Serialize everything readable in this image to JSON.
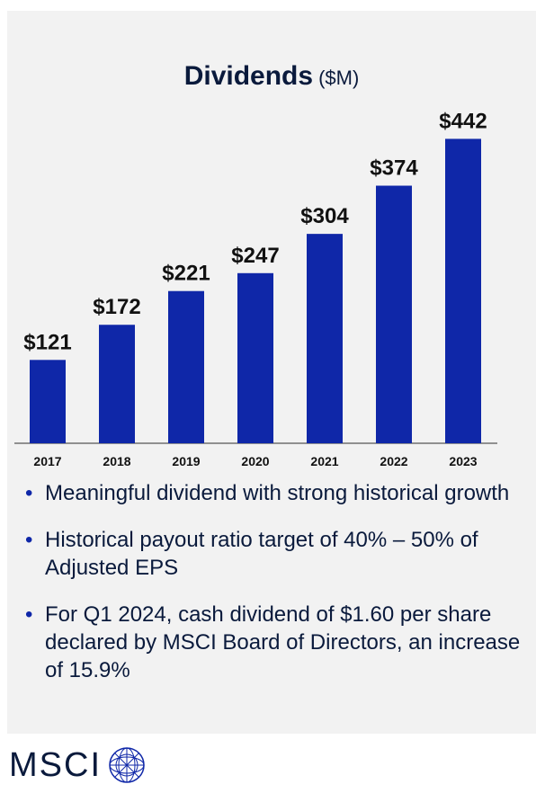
{
  "chart_data": {
    "type": "bar",
    "title": "Dividends",
    "subtitle": "($M)",
    "categories": [
      "2017",
      "2018",
      "2019",
      "2020",
      "2021",
      "2022",
      "2023"
    ],
    "values": [
      121,
      172,
      221,
      247,
      304,
      374,
      442
    ],
    "value_labels": [
      "$121",
      "$172",
      "$221",
      "$247",
      "$304",
      "$374",
      "$442"
    ],
    "ylim": [
      0,
      500
    ],
    "grid": false,
    "bar_color": "#0f27a8"
  },
  "bullets": [
    "Meaningful dividend with strong historical growth",
    "Historical payout ratio target of 40% – 50% of Adjusted EPS",
    "For Q1 2024, cash dividend of $1.60 per share declared by MSCI Board of Directors, an increase of 15.9%"
  ],
  "bullet_glyph": "•",
  "logo": {
    "text": "MSCI",
    "icon": "globe-icon"
  }
}
